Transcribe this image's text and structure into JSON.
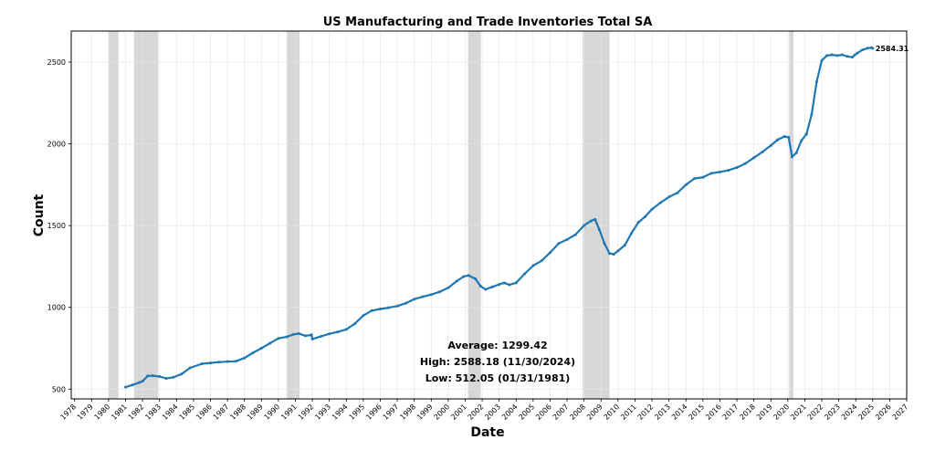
{
  "chart_data": {
    "type": "line",
    "title": "US Manufacturing and Trade Inventories Total SA",
    "xlabel": "Date",
    "ylabel": "Count",
    "xlim": [
      1977.8,
      2027.0
    ],
    "ylim": [
      440,
      2690
    ],
    "grid": true,
    "x_tick_labels": [
      "1978",
      "1979",
      "1980",
      "1981",
      "1982",
      "1983",
      "1984",
      "1985",
      "1986",
      "1987",
      "1988",
      "1989",
      "1990",
      "1991",
      "1992",
      "1993",
      "1994",
      "1995",
      "1996",
      "1997",
      "1998",
      "1999",
      "2000",
      "2001",
      "2002",
      "2003",
      "2004",
      "2005",
      "2006",
      "2007",
      "2008",
      "2009",
      "2010",
      "2011",
      "2012",
      "2013",
      "2014",
      "2015",
      "2016",
      "2017",
      "2018",
      "2019",
      "2020",
      "2021",
      "2022",
      "2023",
      "2024",
      "2025",
      "2026",
      "2027"
    ],
    "y_ticks": [
      500,
      1000,
      1500,
      2000,
      2500
    ],
    "y_tick_labels": [
      "500",
      "1000",
      "1500",
      "2000",
      "2500"
    ],
    "series_color": "#1f77b4",
    "recession_color": "#d3d3d3",
    "recessions": [
      [
        1980.0,
        1980.58
      ],
      [
        1981.5,
        1982.92
      ],
      [
        1990.5,
        1991.25
      ],
      [
        2001.17,
        2001.92
      ],
      [
        2007.92,
        2009.5
      ],
      [
        2020.08,
        2020.33
      ]
    ],
    "series": [
      {
        "x": [
          1981.0,
          1981.4,
          1981.8,
          1982.0,
          1982.3,
          1982.6,
          1983.0,
          1983.4,
          1983.8,
          1984.3,
          1984.8,
          1985.5,
          1986.0,
          1986.5,
          1987.0,
          1987.5,
          1988.0,
          1988.5,
          1989.0,
          1989.5,
          1990.0,
          1990.5,
          1990.9,
          1991.2,
          1991.6,
          1991.95,
          1992.0,
          1992.5,
          1993.0,
          1993.5,
          1994.0,
          1994.5,
          1995.0,
          1995.5,
          1996.0,
          1996.5,
          1997.0,
          1997.5,
          1998.0,
          1998.5,
          1999.0,
          1999.5,
          2000.0,
          2000.5,
          2000.9,
          2001.2,
          2001.6,
          2001.9,
          2002.2,
          2002.6,
          2003.0,
          2003.3,
          2003.6,
          2004.0,
          2004.5,
          2005.0,
          2005.5,
          2006.0,
          2006.5,
          2007.0,
          2007.5,
          2008.0,
          2008.4,
          2008.65,
          2008.9,
          2009.2,
          2009.5,
          2009.75,
          2010.0,
          2010.4,
          2010.8,
          2011.2,
          2011.6,
          2012.0,
          2012.5,
          2013.0,
          2013.5,
          2014.0,
          2014.5,
          2015.0,
          2015.5,
          2016.0,
          2016.5,
          2017.0,
          2017.5,
          2018.0,
          2018.5,
          2019.0,
          2019.4,
          2019.8,
          2020.05,
          2020.25,
          2020.5,
          2020.8,
          2021.1,
          2021.4,
          2021.7,
          2022.0,
          2022.3,
          2022.6,
          2022.9,
          2023.2,
          2023.5,
          2023.8,
          2023.95,
          2024.1,
          2024.4,
          2024.7,
          2024.92,
          2025.0
        ],
        "values": [
          512.05,
          525,
          540,
          548,
          580,
          582,
          577,
          565,
          572,
          592,
          630,
          655,
          660,
          665,
          668,
          670,
          690,
          722,
          750,
          780,
          810,
          820,
          835,
          840,
          826,
          832,
          806,
          822,
          838,
          850,
          865,
          900,
          950,
          980,
          990,
          998,
          1008,
          1025,
          1050,
          1065,
          1078,
          1095,
          1120,
          1160,
          1188,
          1195,
          1175,
          1130,
          1110,
          1125,
          1140,
          1150,
          1138,
          1150,
          1205,
          1255,
          1285,
          1335,
          1390,
          1415,
          1445,
          1500,
          1528,
          1538,
          1475,
          1390,
          1330,
          1325,
          1345,
          1380,
          1455,
          1520,
          1555,
          1600,
          1640,
          1675,
          1700,
          1750,
          1788,
          1795,
          1820,
          1828,
          1838,
          1855,
          1880,
          1915,
          1950,
          1990,
          2025,
          2045,
          2040,
          1920,
          1945,
          2020,
          2060,
          2180,
          2380,
          2510,
          2540,
          2545,
          2540,
          2545,
          2535,
          2530,
          2545,
          2555,
          2575,
          2585,
          2588.18,
          2584.31
        ]
      }
    ],
    "annotations": {
      "average": "Average: 1299.42",
      "high": "High: 2588.18 (11/30/2024)",
      "low": "Low: 512.05 (01/31/1981)",
      "last_value": "2584.31"
    }
  }
}
